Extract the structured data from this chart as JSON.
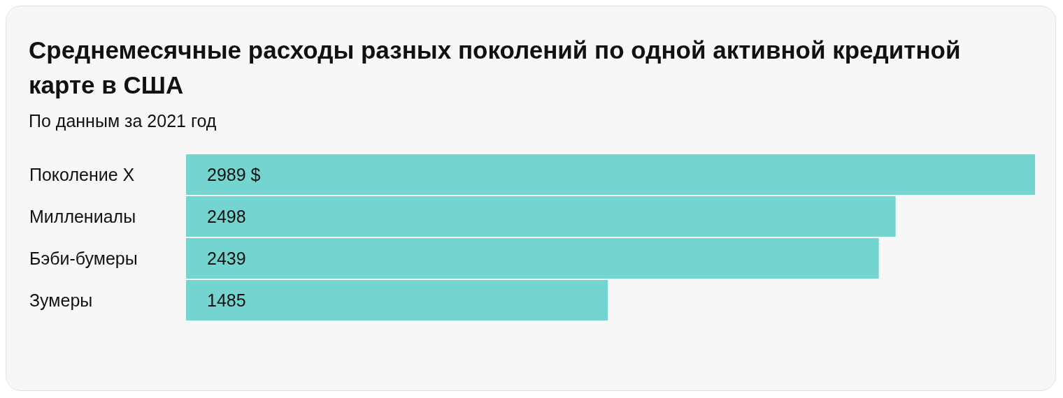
{
  "chart_data": {
    "type": "bar",
    "orientation": "horizontal",
    "title": "Среднемесячные расходы разных поколений по одной активной кредитной карте в США",
    "subtitle": "По данным за 2021 год",
    "categories": [
      "Поколение X",
      "Миллениалы",
      "Бэби-бумеры",
      "Зумеры"
    ],
    "values": [
      2989,
      2498,
      2439,
      1485
    ],
    "value_labels": [
      "2989 $",
      "2498",
      "2439",
      "1485"
    ],
    "color": "#74d5d0"
  }
}
